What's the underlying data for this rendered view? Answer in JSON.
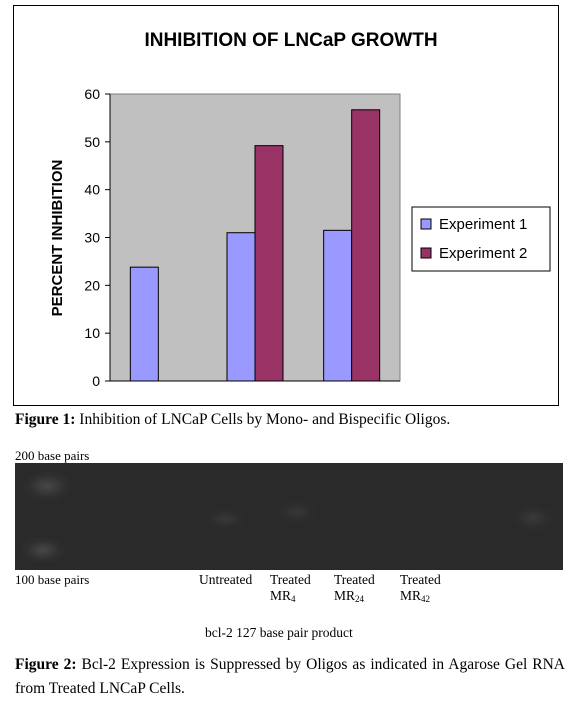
{
  "figure1": {
    "chart_data": {
      "type": "bar",
      "title": "INHIBITION OF LNCaP GROWTH",
      "ylabel": "PERCENT INHIBITION",
      "xlabel": "",
      "ylim": [
        0,
        60
      ],
      "yticks": [
        0,
        10,
        20,
        30,
        40,
        50,
        60
      ],
      "categories": [
        "",
        "",
        ""
      ],
      "series": [
        {
          "name": "Experiment 1",
          "color": "#9999ff",
          "values": [
            23.8,
            31.0,
            31.5
          ]
        },
        {
          "name": "Experiment 2",
          "color": "#993366",
          "values": [
            null,
            49.2,
            56.7
          ]
        }
      ],
      "legend_position": "right",
      "plot_background": "#c0c0c0",
      "grid": false
    },
    "caption_label": "Figure 1:",
    "caption_text": " Inhibition of LNCaP Cells by Mono- and Bispecific Oligos."
  },
  "figure2": {
    "marker_top": "200 base pairs",
    "marker_bottom": "100 base pairs",
    "lanes": [
      {
        "line1": "Untreated",
        "line2_main": "",
        "line2_sub": ""
      },
      {
        "line1": "Treated",
        "line2_main": "MR",
        "line2_sub": "4"
      },
      {
        "line1": "Treated",
        "line2_main": "MR",
        "line2_sub": "24"
      },
      {
        "line1": "Treated",
        "line2_main": "MR",
        "line2_sub": "42"
      }
    ],
    "product_label": "bcl-2 127 base pair product",
    "caption_label": "Figure 2:",
    "caption_text": " Bcl-2 Expression is Suppressed by Oligos as indicated in Agarose Gel RNA from Treated LNCaP Cells."
  }
}
